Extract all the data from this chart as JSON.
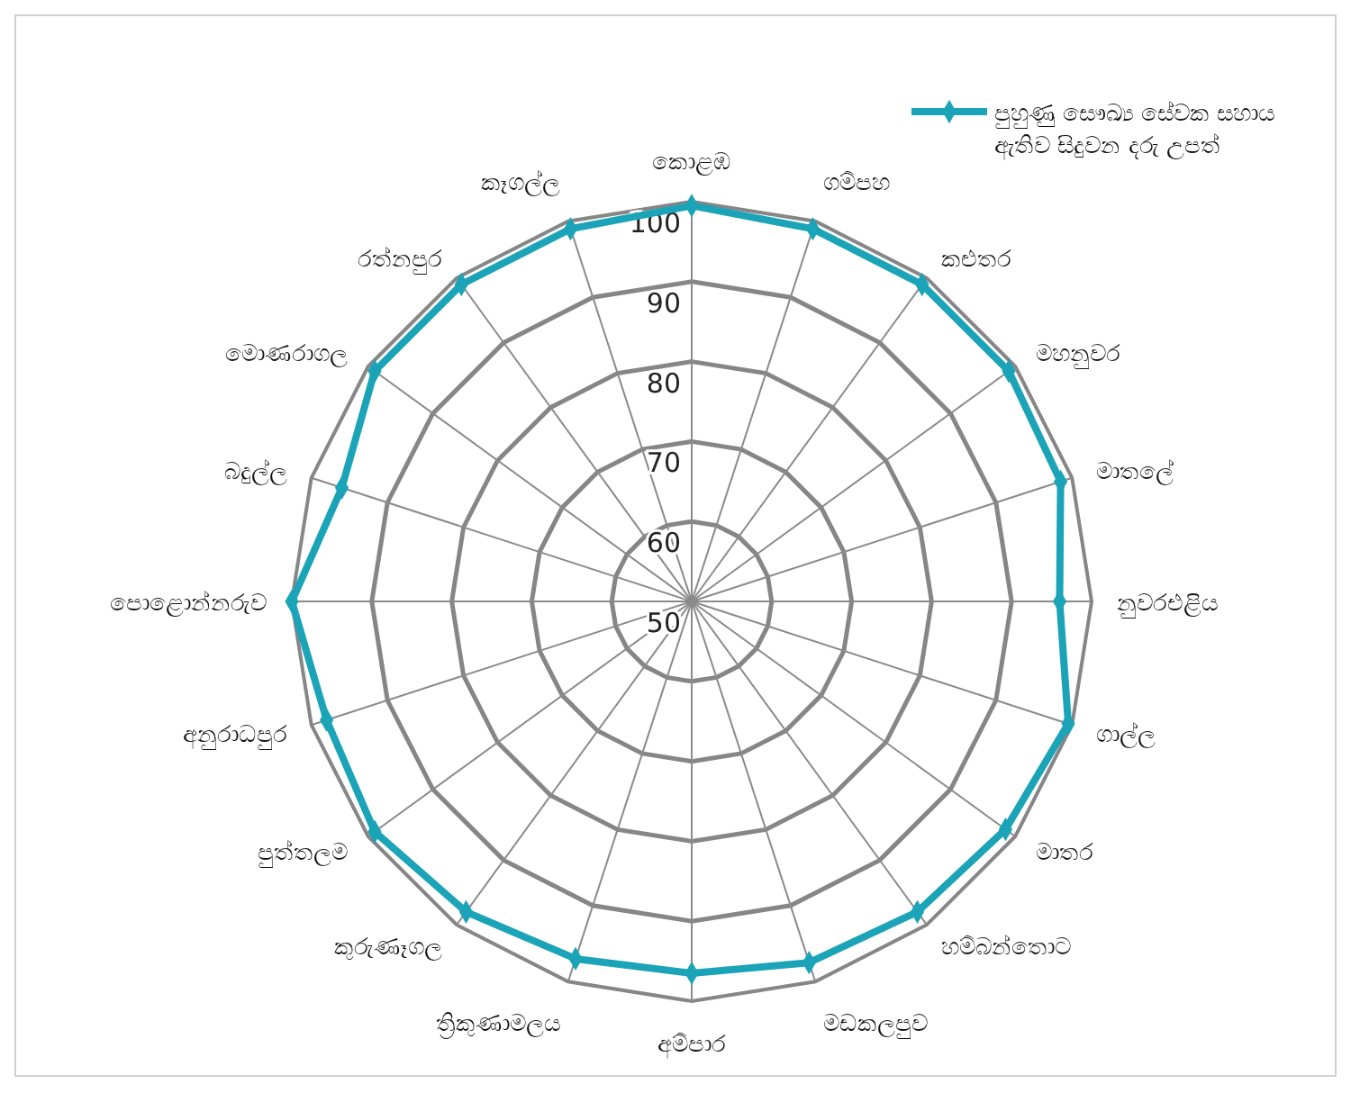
{
  "chart_data": {
    "type": "radar",
    "categories": [
      "කොළඹ",
      "ගම්පහ",
      "කළුතර",
      "මහනුවර",
      "මාතලේ",
      "නුවරඑළිය",
      "ගාල්ල",
      "මාතර",
      "හම්බන්තොට",
      "මඩකලපුව",
      "අම්පාර",
      "ත්‍රිකුණාමලය",
      "කුරුණෑගල",
      "පුත්තලම",
      "අනුරාධපුර",
      "පොළොන්නරුව",
      "බදුල්ල",
      "මොණරාගල",
      "රත්නපුර",
      "කෑගල්ල"
    ],
    "series": [
      {
        "name": "පුහුණු සෞඛ්‍ය සේවක සහාය ඇතිව සිදුවන දරු උපත්",
        "color": "#1ba3b8",
        "values": [
          99.5,
          99,
          99,
          99,
          98.5,
          96,
          99.5,
          98.5,
          98,
          97.5,
          96.5,
          97,
          98,
          99,
          98,
          100,
          96,
          99,
          99,
          99
        ]
      }
    ],
    "ylim": [
      50,
      100
    ],
    "yticks": [
      50,
      60,
      70,
      80,
      90,
      100
    ],
    "grid": true,
    "legend": "top right",
    "marker": "diamond",
    "line_style": "solid"
  }
}
